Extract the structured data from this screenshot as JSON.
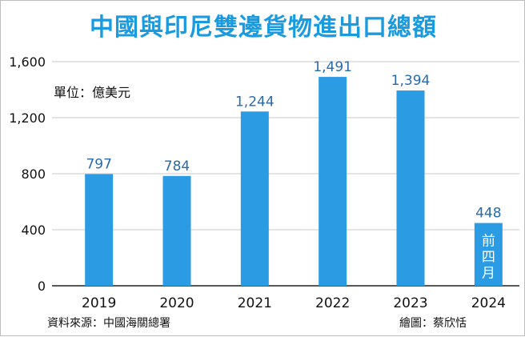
{
  "colors": {
    "title": "#1a9be0",
    "bar": "#2b9be3",
    "grid": "#c9c9c9",
    "data_label": "#2a6aa8"
  },
  "chart_data": {
    "type": "bar",
    "title": "中國與印尼雙邊貨物進出口總額",
    "unit_label": "單位：億美元",
    "categories": [
      "2019",
      "2020",
      "2021",
      "2022",
      "2023",
      "2024"
    ],
    "values": [
      797,
      784,
      1244,
      1491,
      1394,
      448
    ],
    "value_labels": [
      "797",
      "784",
      "1,244",
      "1,491",
      "1,394",
      "448"
    ],
    "bar_notes": [
      "",
      "",
      "",
      "",
      "",
      "前四月"
    ],
    "y_ticks": [
      0,
      400,
      800,
      1200,
      1600
    ],
    "y_tick_labels": [
      "0",
      "400",
      "800",
      "1,200",
      "1,600"
    ],
    "ylim": [
      0,
      1600
    ],
    "grid": true,
    "xlabel": "",
    "ylabel": ""
  },
  "footer": {
    "source": "資料來源：中國海關總署",
    "credit": "繪圖：蔡欣恬"
  }
}
